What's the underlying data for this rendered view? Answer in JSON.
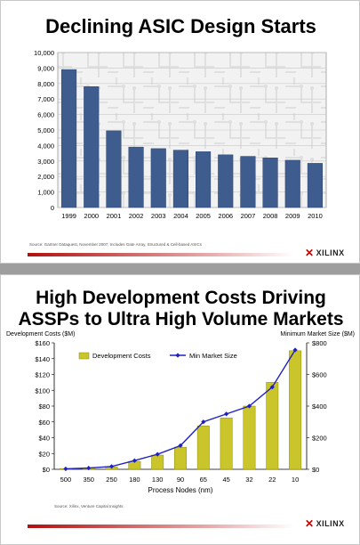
{
  "slide1": {
    "title": "Declining ASIC Design Starts",
    "source": "Source: Gartner Dataquest, November 2007, Includes Gate Array, Structured & Cell-based ASICs",
    "logo": "XILINX"
  },
  "slide2": {
    "title_line1": "High Development Costs Driving",
    "title_line2": "ASSPs to Ultra High Volume Markets",
    "source": "Source: Xilinx, Venture Capital Insights",
    "logo": "XILINX"
  },
  "colors": {
    "bar_blue": "#3f5c8f",
    "bar_olive": "#c9c52a",
    "line_blue": "#2020c0",
    "footer_red": "#b01010"
  },
  "chart_data": [
    {
      "type": "bar",
      "title": "Declining ASIC Design Starts",
      "categories": [
        "1999",
        "2000",
        "2001",
        "2002",
        "2003",
        "2004",
        "2005",
        "2006",
        "2007",
        "2008",
        "2009",
        "2010"
      ],
      "values": [
        8900,
        7800,
        4950,
        3900,
        3800,
        3700,
        3600,
        3400,
        3300,
        3200,
        3050,
        2850
      ],
      "ylim": [
        0,
        10000
      ],
      "yticks": [
        "0",
        "1,000",
        "2,000",
        "3,000",
        "4,000",
        "5,000",
        "6,000",
        "7,000",
        "8,000",
        "9,000",
        "10,000"
      ],
      "grid": true
    },
    {
      "type": "bar",
      "categories": [
        "500",
        "350",
        "250",
        "180",
        "130",
        "90",
        "65",
        "45",
        "32",
        "22",
        "10"
      ],
      "xlabel": "Process Nodes (nm)",
      "ylabel_left": "Development Costs ($M)",
      "ylabel_right": "Minimum Market Size ($M)",
      "ylim_left": [
        0,
        160
      ],
      "ylim_right": [
        0,
        800
      ],
      "yticks_left": [
        "$0",
        "$20",
        "$40",
        "$60",
        "$80",
        "$100",
        "$120",
        "$140",
        "$160"
      ],
      "yticks_right": [
        "$0",
        "$200",
        "$400",
        "$600",
        "$800"
      ],
      "legend": "top-left",
      "series": [
        {
          "name": "Development Costs",
          "kind": "bar",
          "axis": "left",
          "values": [
            1,
            1.5,
            3,
            10,
            18,
            28,
            55,
            65,
            80,
            110,
            150
          ]
        },
        {
          "name": "Min Market Size",
          "kind": "line",
          "axis": "right",
          "values": [
            3,
            8,
            18,
            55,
            95,
            150,
            300,
            350,
            400,
            520,
            755
          ]
        }
      ]
    }
  ]
}
